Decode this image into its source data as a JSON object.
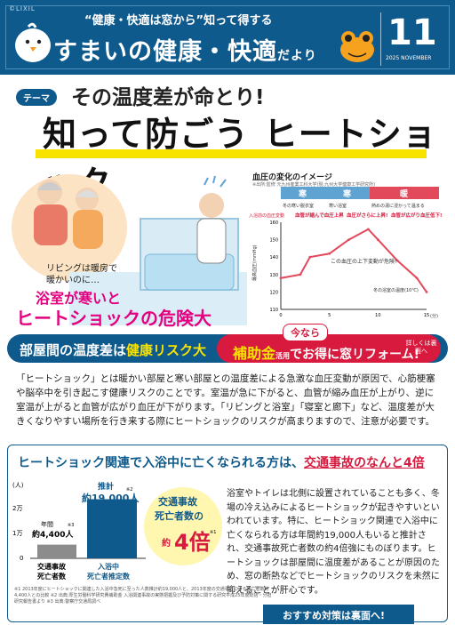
{
  "header": {
    "brand": "©LIXIL",
    "slogan": "“健康・快適は窓から”知って得する",
    "title_main": "すまいの健康・快適",
    "title_small": "だより",
    "issue_number": "11",
    "issue_date": "2025 NOVEMBER"
  },
  "theme": {
    "badge": "テーマ",
    "subtitle": "その温度差が命とり!",
    "title_a": "知って防ごう",
    "title_b": "ヒートショック"
  },
  "illustration": {
    "note_line1": "リビングは暖房で",
    "note_line2": "暖かいのに…",
    "note_pink1": "浴室が寒いと",
    "note_pink2": "ヒートショックの危険大"
  },
  "chart": {
    "title": "血圧の変化のイメージ",
    "source": "※出所:監修 元九州産業工科大学(現:九州大学健康工学研究所)",
    "ylabel": "最高血圧(mmHg)",
    "stage_labels": [
      "寒",
      "寒",
      "暖"
    ],
    "stage_notes": [
      "冬の寒い脱衣室",
      "寒い浴室",
      "熱めの湯に浸かって温まる"
    ],
    "events": [
      "入浴前の血圧変動",
      "血管が縮んで血圧上昇",
      "血圧がさらに上昇!",
      "血管が広がり血圧低下!"
    ],
    "center_note": "この血圧の上下変動が危険!",
    "ambient": "冬の浴室の温度(10℃)",
    "xticks": [
      "0",
      "5",
      "10",
      "15"
    ],
    "xunit": "(分)",
    "yticks": [
      "110",
      "120",
      "130",
      "140",
      "150",
      "160"
    ]
  },
  "chart_data": {
    "type": "line",
    "title": "血圧の変化のイメージ",
    "xlabel": "(分)",
    "ylabel": "最高血圧(mmHg)",
    "x": [
      0,
      2,
      3,
      5,
      7,
      9,
      10,
      12,
      14,
      15
    ],
    "series": [
      {
        "values": [
          128,
          130,
          140,
          142,
          150,
          156,
          150,
          138,
          128,
          120
        ]
      }
    ],
    "xlim": [
      0,
      15
    ],
    "ylim": [
      110,
      160
    ]
  },
  "band": {
    "left": "部屋間の温度差は",
    "left_hi": "健康リスク大",
    "ima": "今なら",
    "right_hi": "補助金",
    "right_small": "活用",
    "right": "でお得に窓リフォーム!",
    "more": "詳しくは裏面へ"
  },
  "body_text": "「ヒートショック」とは暖かい部屋と寒い部屋との温度差による急激な血圧変動が原因で、心筋梗塞や脳卒中を引き起こす健康リスクのことです。室温が急に下がると、血管が縮み血圧が上がり、逆に室温が上がると血管が広がり血圧が下がります。「リビングと浴室」「寝室と廊下」など、温度差が大きくなりやすい場所を行き来する際にヒートショックのリスクが高まりますので、注意が必要です。",
  "box": {
    "heading_a": "ヒートショック関連で入浴中に亡くなられる方は、",
    "heading_b": "交通事故のなんと4倍",
    "right_text": "浴室やトイレは北側に設置されていることも多く、冬場の冷え込みによるヒートショックが起きやすいといわれています。特に、ヒートショック関連で入浴中に亡くなられる方は年間約19,000人もいると推計され、交通事故死亡者数の約4倍強にものぼります。ヒートショックは部屋間に温度差があることが原因のため、窓の断熱などでヒートショックのリスクを未然に抑えることが肝心です。",
    "footnote": "※1 2013年度にヒートショックに関連した入浴中急死に至った人数推計約19,000人と、2013年度の交通事故による死亡者数約4,400人との比較 ※2 出典:厚生労働科学研究費補助金 入浴関連事故の実態把握及び予防対策に関する研究平成25年度総括・分担研究報告書より ※3 出典:警察庁交通局調べ",
    "more": "おすすめ対策は裏面へ!"
  },
  "bar_chart": {
    "unit": "(人)",
    "yticks": [
      "2万",
      "1万",
      "0"
    ],
    "bar1_label1": "年間",
    "bar1_label2": "約4,400人",
    "bar1_note": "※3",
    "bar1_cat1": "交通事故",
    "bar1_cat2": "死亡者数",
    "bar2_label1": "推計",
    "bar2_label2": "約19,000人",
    "bar2_note": "※2",
    "bar2_cat1": "入浴中",
    "bar2_cat2": "死亡者推定数",
    "callout1": "交通事故",
    "callout2": "死亡者数の",
    "callout3": "約",
    "callout4": "4倍",
    "callout_note": "※1"
  },
  "bar_chart_data": {
    "type": "bar",
    "categories": [
      "交通事故死亡者数",
      "入浴中死亡者推定数"
    ],
    "values": [
      4400,
      19000
    ],
    "ylim": [
      0,
      20000
    ]
  }
}
